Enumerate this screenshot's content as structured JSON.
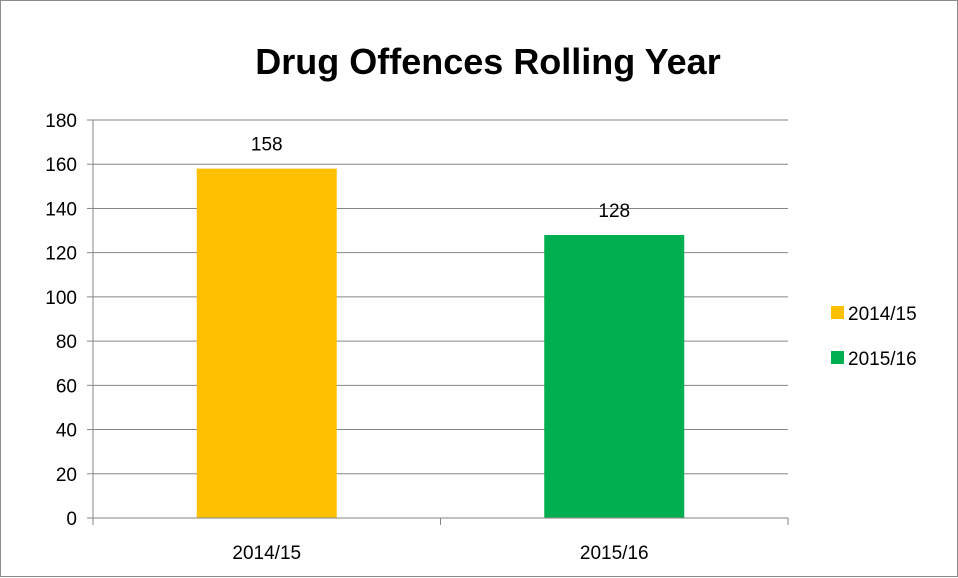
{
  "chart_data": {
    "type": "bar",
    "title": "Drug Offences Rolling Year",
    "xlabel": "",
    "ylabel": "",
    "categories": [
      "2014/15",
      "2015/16"
    ],
    "series": [
      {
        "name": "2014/15",
        "values": [
          158,
          null
        ],
        "color": "#FFC000"
      },
      {
        "name": "2015/16",
        "values": [
          null,
          128
        ],
        "color": "#00B050"
      }
    ],
    "data_labels": [
      "158",
      "128"
    ],
    "ylim": [
      0,
      180
    ],
    "yticks": [
      0,
      20,
      40,
      60,
      80,
      100,
      120,
      140,
      160,
      180
    ],
    "grid": true,
    "legend": "right"
  }
}
